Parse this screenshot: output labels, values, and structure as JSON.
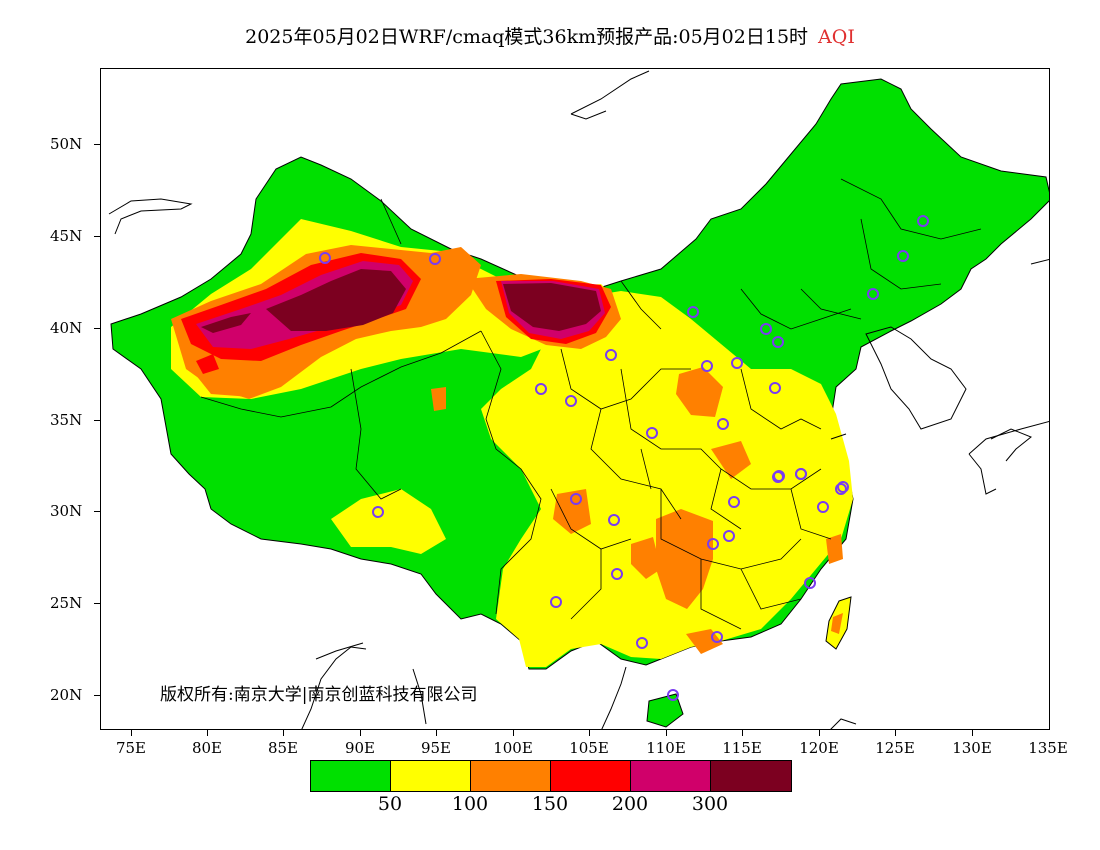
{
  "title": {
    "main": "2025年05月02日WRF/cmaq模式36km预报产品:05月02日15时",
    "variable": "AQI",
    "variable_color": "#e03030"
  },
  "axes": {
    "y_labels": [
      "50N",
      "45N",
      "40N",
      "35N",
      "30N",
      "25N",
      "20N"
    ],
    "x_labels": [
      "75E",
      "80E",
      "85E",
      "90E",
      "95E",
      "100E",
      "105E",
      "110E",
      "115E",
      "120E",
      "125E",
      "130E",
      "135E"
    ]
  },
  "copyright": "版权所有:南京大学|南京创蓝科技有限公司",
  "legend": {
    "colors": [
      "#00e000",
      "#ffff00",
      "#ff8000",
      "#ff0000",
      "#d0006a",
      "#7c0020"
    ],
    "labels": [
      "50",
      "100",
      "150",
      "200",
      "300"
    ]
  },
  "map": {
    "land_color": "#00e000",
    "station_color": "#7a3cf0",
    "outline_color": "#000000"
  }
}
